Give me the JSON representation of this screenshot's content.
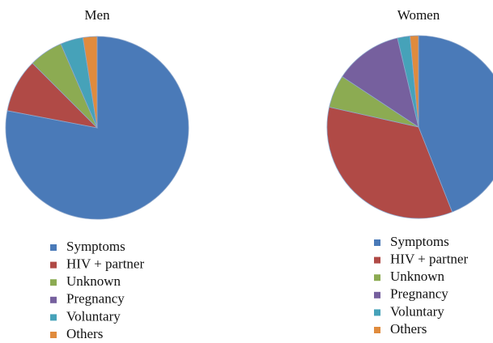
{
  "chart_data": [
    {
      "type": "pie",
      "title": "Men",
      "categories": [
        "Symptoms",
        "HIV + partner",
        "Unknown",
        "Pregnancy",
        "Voluntary",
        "Others"
      ],
      "values": [
        78,
        9.5,
        6,
        0,
        4,
        2.5
      ],
      "colors": [
        "#4a7ab8",
        "#b04a46",
        "#8cab52",
        "#76609e",
        "#46a2b9",
        "#e08b3d"
      ]
    },
    {
      "type": "pie",
      "title": "Women",
      "categories": [
        "Symptoms",
        "HIV + partner",
        "Unknown",
        "Pregnancy",
        "Voluntary",
        "Others"
      ],
      "values": [
        44,
        34.5,
        5.8,
        12,
        2.2,
        1.5
      ],
      "colors": [
        "#4a7ab8",
        "#b04a46",
        "#8cab52",
        "#76609e",
        "#46a2b9",
        "#e08b3d"
      ]
    }
  ]
}
